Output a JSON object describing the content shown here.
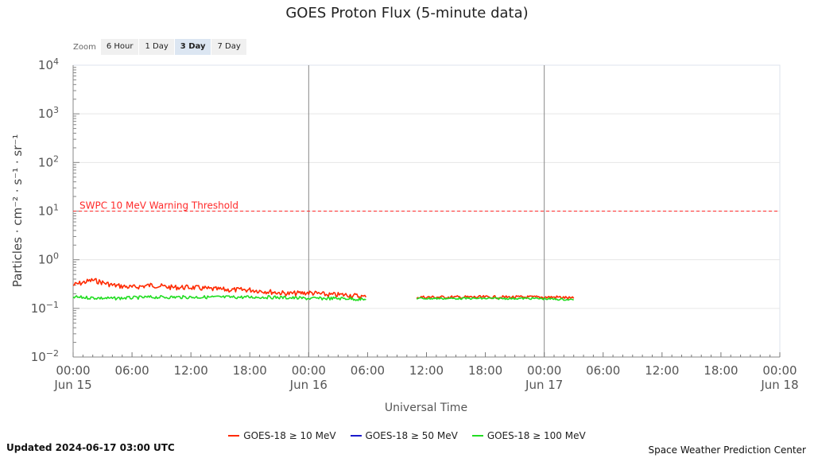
{
  "header": {
    "title": "GOES Proton Flux (5-minute data)"
  },
  "zoom": {
    "label": "Zoom",
    "options": [
      "6 Hour",
      "1 Day",
      "3 Day",
      "7 Day"
    ],
    "active": "3 Day"
  },
  "footer": {
    "updated": "Updated 2024-06-17 03:00 UTC",
    "org": "Space Weather Prediction Center"
  },
  "colors": {
    "s10": "#ff2a00",
    "s50": "#1a1acc",
    "s100": "#22dd22",
    "threshold": "#ff2a2a"
  },
  "chart_data": {
    "type": "line",
    "title": "GOES Proton Flux (5-minute data)",
    "xlabel": "Universal Time",
    "ylabel": "Particles · cm⁻² · s⁻¹ · sr⁻¹",
    "y_scale": "log",
    "ylim_exponent": [
      -2,
      4
    ],
    "y_ticks": [
      {
        "base": "10",
        "exp": "−2"
      },
      {
        "base": "10",
        "exp": "−1"
      },
      {
        "base": "10",
        "exp": "0"
      },
      {
        "base": "10",
        "exp": "1"
      },
      {
        "base": "10",
        "exp": "2"
      },
      {
        "base": "10",
        "exp": "3"
      },
      {
        "base": "10",
        "exp": "4"
      }
    ],
    "x_range": [
      "2024-06-15 00:00",
      "2024-06-18 00:00"
    ],
    "x_ticks": [
      {
        "time": "00:00",
        "date": "Jun 15"
      },
      {
        "time": "06:00",
        "date": ""
      },
      {
        "time": "12:00",
        "date": ""
      },
      {
        "time": "18:00",
        "date": ""
      },
      {
        "time": "00:00",
        "date": "Jun 16"
      },
      {
        "time": "06:00",
        "date": ""
      },
      {
        "time": "12:00",
        "date": ""
      },
      {
        "time": "18:00",
        "date": ""
      },
      {
        "time": "00:00",
        "date": "Jun 17"
      },
      {
        "time": "06:00",
        "date": ""
      },
      {
        "time": "12:00",
        "date": ""
      },
      {
        "time": "18:00",
        "date": ""
      },
      {
        "time": "00:00",
        "date": "Jun 18"
      }
    ],
    "day_lines": [
      "2024-06-16 00:00",
      "2024-06-17 00:00"
    ],
    "threshold": {
      "label": "SWPC 10 MeV Warning Threshold",
      "value": 10
    },
    "legend_position": "bottom-center",
    "series": [
      {
        "name": "GOES-18 ≥ 10 MeV",
        "color": "#ff2a00",
        "points": [
          [
            "2024-06-15 00:00",
            0.3
          ],
          [
            "2024-06-15 02:00",
            0.38
          ],
          [
            "2024-06-15 04:00",
            0.3
          ],
          [
            "2024-06-15 06:00",
            0.27
          ],
          [
            "2024-06-15 08:00",
            0.3
          ],
          [
            "2024-06-15 10:00",
            0.27
          ],
          [
            "2024-06-15 12:00",
            0.27
          ],
          [
            "2024-06-15 14:00",
            0.25
          ],
          [
            "2024-06-15 16:00",
            0.24
          ],
          [
            "2024-06-15 18:00",
            0.24
          ],
          [
            "2024-06-15 20:00",
            0.22
          ],
          [
            "2024-06-15 22:00",
            0.2
          ],
          [
            "2024-06-16 00:00",
            0.21
          ],
          [
            "2024-06-16 02:00",
            0.19
          ],
          [
            "2024-06-16 04:00",
            0.19
          ],
          [
            "2024-06-16 05:50",
            0.17
          ]
        ],
        "points2": [
          [
            "2024-06-16 11:00",
            0.17
          ],
          [
            "2024-06-16 14:00",
            0.17
          ],
          [
            "2024-06-16 17:00",
            0.17
          ],
          [
            "2024-06-16 20:00",
            0.17
          ],
          [
            "2024-06-16 23:00",
            0.17
          ],
          [
            "2024-06-17 01:30",
            0.17
          ],
          [
            "2024-06-17 03:00",
            0.16
          ]
        ]
      },
      {
        "name": "GOES-18 ≥ 50 MeV",
        "color": "#1a1acc",
        "points": [],
        "points2": []
      },
      {
        "name": "GOES-18 ≥ 100 MeV",
        "color": "#22dd22",
        "points": [
          [
            "2024-06-15 00:00",
            0.17
          ],
          [
            "2024-06-15 04:00",
            0.16
          ],
          [
            "2024-06-15 08:00",
            0.17
          ],
          [
            "2024-06-15 12:00",
            0.17
          ],
          [
            "2024-06-15 16:00",
            0.17
          ],
          [
            "2024-06-15 20:00",
            0.17
          ],
          [
            "2024-06-16 00:00",
            0.16
          ],
          [
            "2024-06-16 04:00",
            0.16
          ],
          [
            "2024-06-16 05:50",
            0.15
          ]
        ],
        "points2": [
          [
            "2024-06-16 11:00",
            0.16
          ],
          [
            "2024-06-16 15:00",
            0.16
          ],
          [
            "2024-06-16 19:00",
            0.16
          ],
          [
            "2024-06-16 23:00",
            0.16
          ],
          [
            "2024-06-17 03:00",
            0.15
          ]
        ]
      }
    ]
  }
}
